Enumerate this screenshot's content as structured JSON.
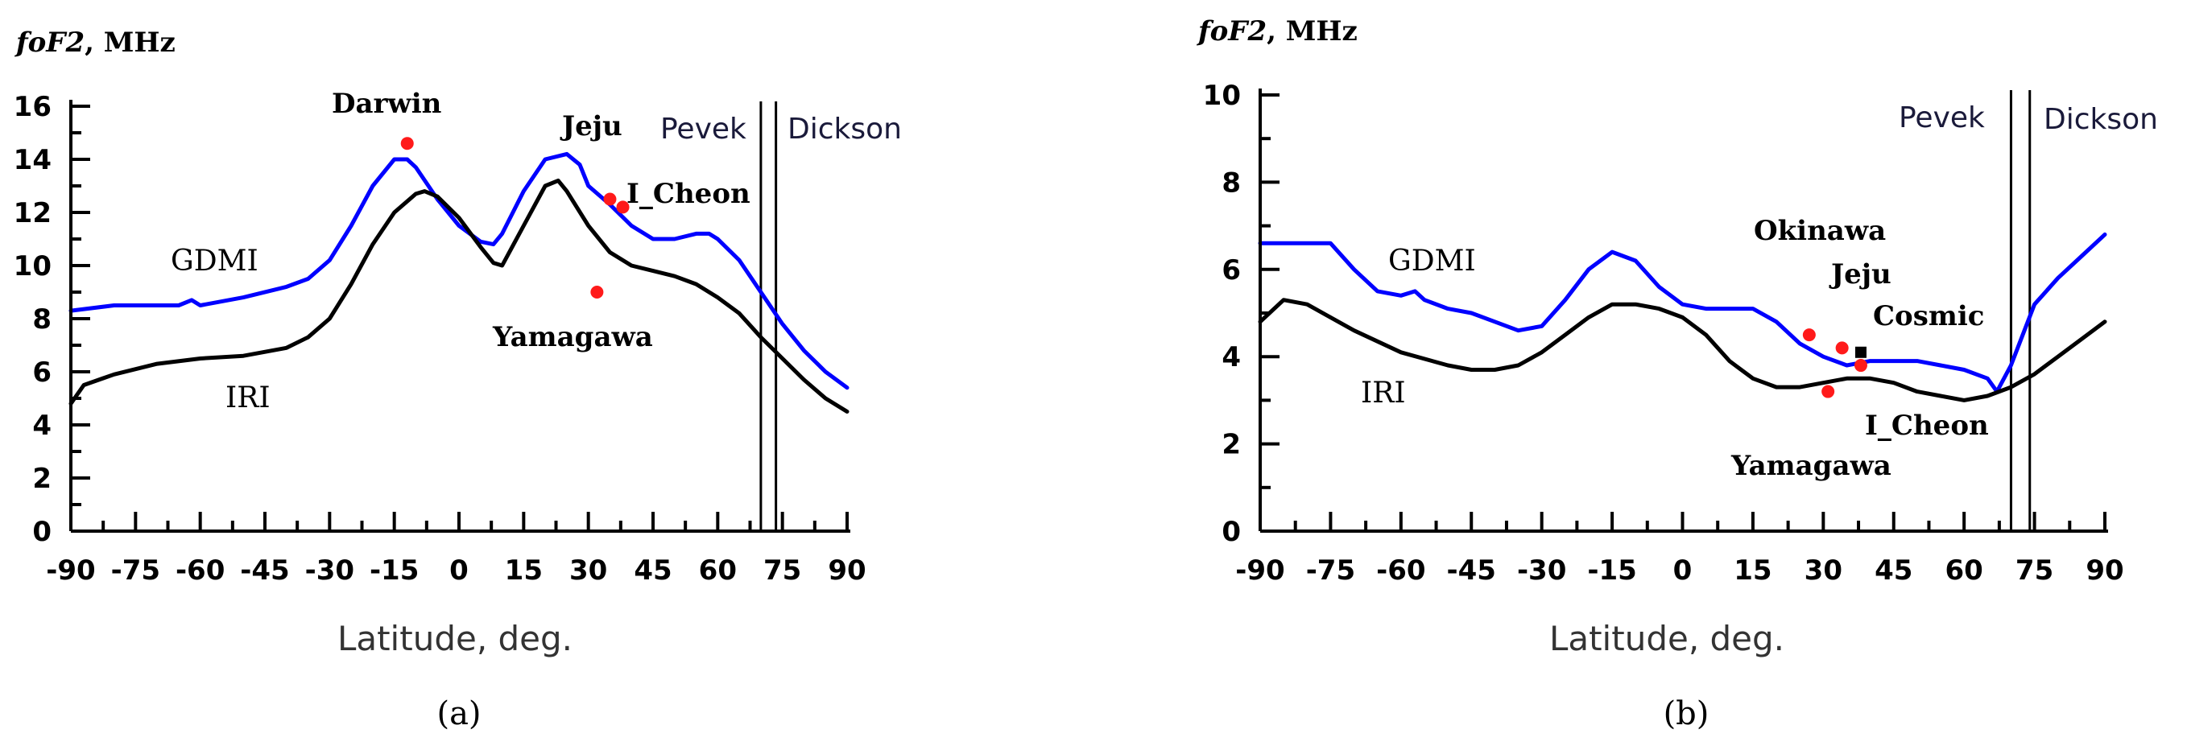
{
  "chart_data": [
    {
      "type": "line",
      "panel_label": "(a)",
      "y_label_italic": "foF2",
      "y_label_rest": ", MHz",
      "xlabel": "Latitude, deg.",
      "xlim": [
        -90,
        90
      ],
      "ylim": [
        0,
        16
      ],
      "x_ticks": [
        -90,
        -75,
        -60,
        -45,
        -30,
        -15,
        0,
        15,
        30,
        45,
        60,
        75,
        90
      ],
      "y_ticks": [
        0,
        2,
        4,
        6,
        8,
        10,
        12,
        14,
        16
      ],
      "series": [
        {
          "name": "GDMI",
          "color": "#0000ff",
          "x": [
            -90,
            -80,
            -70,
            -65,
            -62,
            -60,
            -50,
            -40,
            -35,
            -30,
            -25,
            -20,
            -15,
            -12,
            -10,
            -5,
            0,
            5,
            8,
            10,
            15,
            20,
            25,
            28,
            30,
            35,
            40,
            45,
            50,
            55,
            58,
            60,
            65,
            70,
            75,
            80,
            85,
            90
          ],
          "y": [
            8.3,
            8.5,
            8.5,
            8.5,
            8.7,
            8.5,
            8.8,
            9.2,
            9.5,
            10.2,
            11.5,
            13.0,
            14.0,
            14.0,
            13.7,
            12.5,
            11.5,
            10.9,
            10.8,
            11.2,
            12.8,
            14.0,
            14.2,
            13.8,
            13.0,
            12.3,
            11.5,
            11.0,
            11.0,
            11.2,
            11.2,
            11.0,
            10.2,
            9.0,
            7.8,
            6.8,
            6.0,
            5.4
          ]
        },
        {
          "name": "IRI",
          "color": "#000000",
          "x": [
            -90,
            -87,
            -80,
            -70,
            -60,
            -50,
            -40,
            -35,
            -30,
            -25,
            -20,
            -15,
            -10,
            -8,
            -5,
            0,
            5,
            8,
            10,
            15,
            20,
            23,
            25,
            30,
            35,
            40,
            45,
            50,
            55,
            60,
            65,
            70,
            75,
            80,
            85,
            90
          ],
          "y": [
            4.8,
            5.5,
            5.9,
            6.3,
            6.5,
            6.6,
            6.9,
            7.3,
            8.0,
            9.3,
            10.8,
            12.0,
            12.7,
            12.8,
            12.6,
            11.8,
            10.7,
            10.1,
            10.0,
            11.5,
            13.0,
            13.2,
            12.8,
            11.5,
            10.5,
            10.0,
            9.8,
            9.6,
            9.3,
            8.8,
            8.2,
            7.3,
            6.5,
            5.7,
            5.0,
            4.5
          ]
        }
      ],
      "observations": [
        {
          "station": "Darwin",
          "x": -12,
          "y": 14.6
        },
        {
          "station": "Jeju",
          "x": 35,
          "y": 12.5
        },
        {
          "station": "I_Cheon",
          "x": 38,
          "y": 12.2
        },
        {
          "station": "Yamagawa",
          "x": 32,
          "y": 9.0
        }
      ],
      "vlines": [
        {
          "label": "Pevek",
          "x": 70
        },
        {
          "label": "Dickson",
          "x": 73.5
        }
      ],
      "annotations": [
        "GDMI",
        "IRI",
        "Darwin",
        "Jeju",
        "I_Cheon",
        "Yamagawa"
      ]
    },
    {
      "type": "line",
      "panel_label": "(b)",
      "y_label_italic": "foF2",
      "y_label_rest": ", MHz",
      "xlabel": "Latitude, deg.",
      "xlim": [
        -90,
        90
      ],
      "ylim": [
        0,
        10
      ],
      "x_ticks": [
        -90,
        -75,
        -60,
        -45,
        -30,
        -15,
        0,
        15,
        30,
        45,
        60,
        75,
        90
      ],
      "y_ticks": [
        0,
        2,
        4,
        6,
        8,
        10
      ],
      "series": [
        {
          "name": "GDMI",
          "color": "#0000ff",
          "x": [
            -90,
            -80,
            -75,
            -70,
            -65,
            -60,
            -57,
            -55,
            -50,
            -45,
            -40,
            -35,
            -30,
            -25,
            -20,
            -15,
            -10,
            -5,
            0,
            5,
            10,
            15,
            20,
            25,
            30,
            35,
            40,
            45,
            50,
            55,
            60,
            65,
            67,
            70,
            75,
            80,
            85,
            90
          ],
          "y": [
            6.6,
            6.6,
            6.6,
            6.0,
            5.5,
            5.4,
            5.5,
            5.3,
            5.1,
            5.0,
            4.8,
            4.6,
            4.7,
            5.3,
            6.0,
            6.4,
            6.2,
            5.6,
            5.2,
            5.1,
            5.1,
            5.1,
            4.8,
            4.3,
            4.0,
            3.8,
            3.9,
            3.9,
            3.9,
            3.8,
            3.7,
            3.5,
            3.2,
            3.8,
            5.2,
            5.8,
            6.3,
            6.8
          ]
        },
        {
          "name": "IRI",
          "color": "#000000",
          "x": [
            -90,
            -85,
            -80,
            -75,
            -70,
            -60,
            -50,
            -45,
            -40,
            -35,
            -30,
            -25,
            -20,
            -15,
            -10,
            -5,
            0,
            5,
            10,
            15,
            20,
            25,
            30,
            35,
            40,
            45,
            50,
            55,
            60,
            65,
            70,
            75,
            80,
            85,
            90
          ],
          "y": [
            4.8,
            5.3,
            5.2,
            4.9,
            4.6,
            4.1,
            3.8,
            3.7,
            3.7,
            3.8,
            4.1,
            4.5,
            4.9,
            5.2,
            5.2,
            5.1,
            4.9,
            4.5,
            3.9,
            3.5,
            3.3,
            3.3,
            3.4,
            3.5,
            3.5,
            3.4,
            3.2,
            3.1,
            3.0,
            3.1,
            3.3,
            3.6,
            4.0,
            4.4,
            4.8
          ]
        }
      ],
      "observations": [
        {
          "station": "Okinawa",
          "x": 27,
          "y": 4.5
        },
        {
          "station": "Jeju",
          "x": 34,
          "y": 4.2
        },
        {
          "station": "I_Cheon",
          "x": 38,
          "y": 3.8
        },
        {
          "station": "Yamagawa",
          "x": 31,
          "y": 3.2
        },
        {
          "station": "Cosmic",
          "x": 38,
          "y": 4.1,
          "marker": "square"
        }
      ],
      "vlines": [
        {
          "label": "Pevek",
          "x": 70
        },
        {
          "label": "Dickson",
          "x": 74
        }
      ],
      "annotations": [
        "GDMI",
        "IRI",
        "Okinawa",
        "Jeju",
        "Cosmic",
        "I_Cheon",
        "Yamagawa"
      ]
    }
  ]
}
